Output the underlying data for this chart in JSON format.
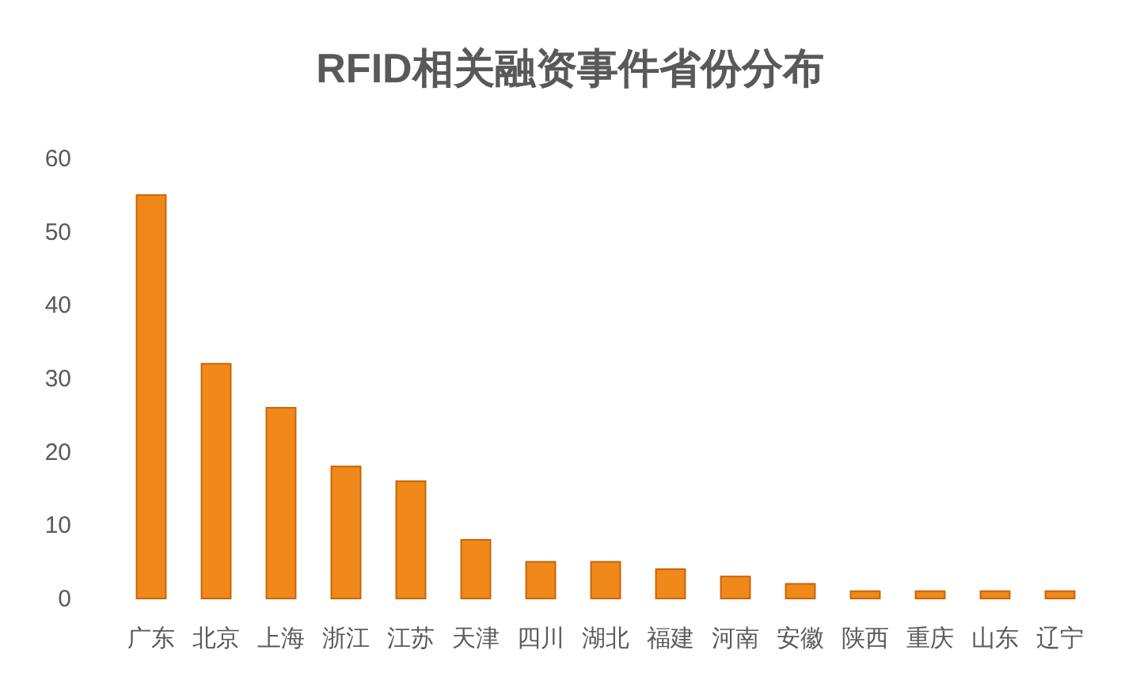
{
  "chart_data": {
    "type": "bar",
    "title": "RFID相关融资事件省份分布",
    "categories": [
      "广东",
      "北京",
      "上海",
      "浙江",
      "江苏",
      "天津",
      "四川",
      "湖北",
      "福建",
      "河南",
      "安徽",
      "陕西",
      "重庆",
      "山东",
      "辽宁"
    ],
    "values": [
      55,
      32,
      26,
      18,
      16,
      8,
      5,
      5,
      4,
      3,
      2,
      1,
      1,
      1,
      1
    ],
    "color": "#f0891a",
    "ylim": [
      0,
      60
    ],
    "yticks": [
      0,
      10,
      20,
      30,
      40,
      50,
      60
    ]
  }
}
